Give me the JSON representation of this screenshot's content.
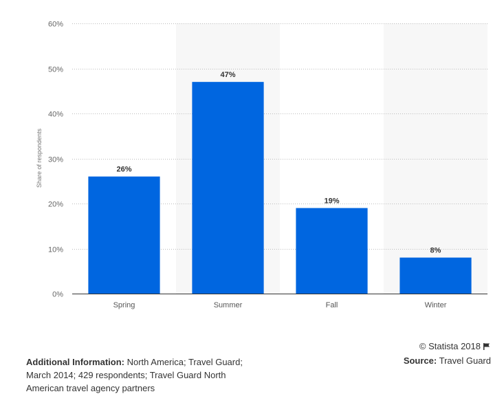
{
  "chart_data": {
    "type": "bar",
    "categories": [
      "Spring",
      "Summer",
      "Fall",
      "Winter"
    ],
    "values": [
      26,
      47,
      19,
      8
    ],
    "value_labels": [
      "26%",
      "47%",
      "19%",
      "8%"
    ],
    "title": "",
    "xlabel": "",
    "ylabel": "Share of respondents",
    "ylim": [
      0,
      60
    ],
    "yticks": [
      0,
      10,
      20,
      30,
      40,
      50,
      60
    ],
    "ytick_labels": [
      "0%",
      "10%",
      "20%",
      "30%",
      "40%",
      "50%",
      "60%"
    ],
    "bar_color": "#0066e0",
    "band_color": "#f7f7f7",
    "grid": true
  },
  "footer": {
    "copyright": "© Statista 2018",
    "source_label": "Source:",
    "source_value": "Travel Guard",
    "info_label": "Additional Information:",
    "info_text": "North America; Travel Guard; March 2014; 429 respondents; Travel Guard North American travel agency partners"
  }
}
